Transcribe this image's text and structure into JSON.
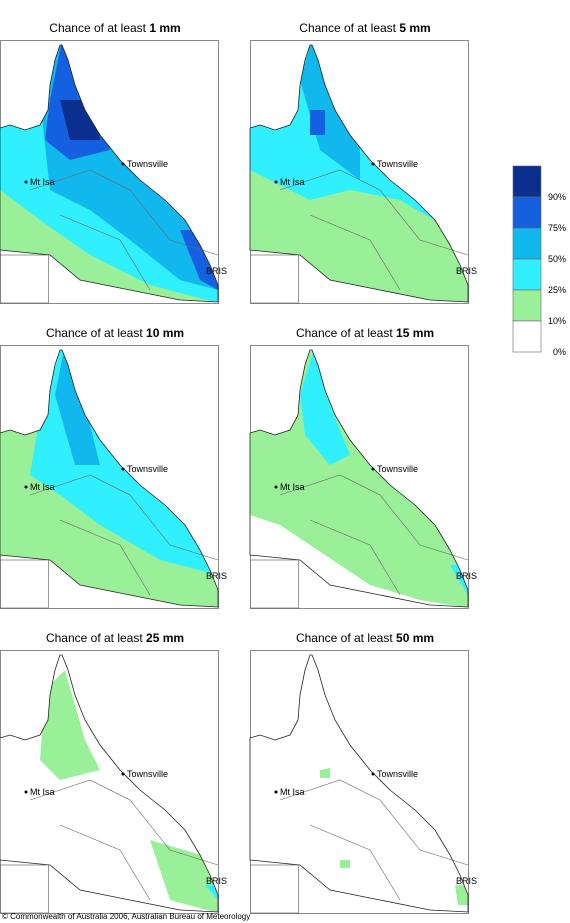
{
  "panels": [
    {
      "title_prefix": "Chance of at least ",
      "amount": "1 mm"
    },
    {
      "title_prefix": "Chance of at least ",
      "amount": "5 mm"
    },
    {
      "title_prefix": "Chance of at least ",
      "amount": "10 mm"
    },
    {
      "title_prefix": "Chance of at least ",
      "amount": "15 mm"
    },
    {
      "title_prefix": "Chance of at least ",
      "amount": "25 mm"
    },
    {
      "title_prefix": "Chance of at least ",
      "amount": "50 mm"
    }
  ],
  "places": {
    "townsville": "Townsville",
    "mt_isa": "Mt Isa",
    "bris": "BRIS"
  },
  "legend": {
    "levels": [
      {
        "color": "#0a2f8f",
        "label": "90%"
      },
      {
        "color": "#1560e0",
        "label": "75%"
      },
      {
        "color": "#10b8ee",
        "label": "50%"
      },
      {
        "color": "#30f0ff",
        "label": "25%"
      },
      {
        "color": "#99f099",
        "label": "10%"
      },
      {
        "color": "#ffffff",
        "label": "0%"
      }
    ]
  },
  "footer": "© Commonwealth of Australia 2006, Australian Bureau of Meteorology"
}
